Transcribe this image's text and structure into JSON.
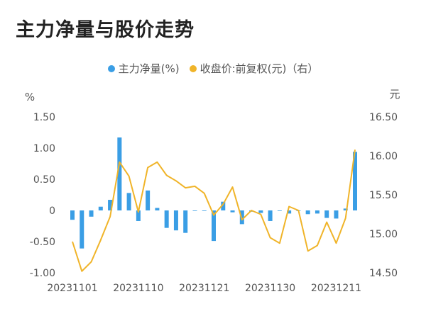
{
  "title": "主力净量与股价走势",
  "colors": {
    "bar": "#3a9ee5",
    "line": "#f0b429",
    "text": "#555555"
  },
  "chart_data": {
    "type": "bar+line",
    "legend": [
      {
        "label": "主力净量(%)",
        "color": "#3a9ee5",
        "type": "bar"
      },
      {
        "label": "收盘价:前复权(元)（右）",
        "color": "#f0b429",
        "type": "line"
      }
    ],
    "left_axis": {
      "unit": "%",
      "min": -1.0,
      "max": 1.5,
      "ticks": [
        1.5,
        1.0,
        0.5,
        0,
        -0.5,
        -1.0
      ],
      "tick_labels": [
        "1.50",
        "1.00",
        "0.50",
        "0",
        "-0.50",
        "-1.00"
      ]
    },
    "right_axis": {
      "unit": "元",
      "min": 14.5,
      "max": 16.5,
      "ticks": [
        16.5,
        16.0,
        15.5,
        15.0,
        14.5
      ],
      "tick_labels": [
        "16.50",
        "16.00",
        "15.50",
        "15.00",
        "14.50"
      ]
    },
    "x_tick_labels": [
      "20231101",
      "20231110",
      "20231121",
      "20231130",
      "20231211"
    ],
    "x_tick_index": [
      0,
      7,
      14,
      21,
      28
    ],
    "bars": [
      -0.15,
      -0.61,
      -0.1,
      0.06,
      0.17,
      1.17,
      0.28,
      -0.17,
      0.32,
      0.04,
      -0.28,
      -0.32,
      -0.36,
      0.0,
      0.0,
      -0.49,
      0.14,
      -0.03,
      -0.22,
      -0.02,
      -0.04,
      -0.17,
      0.0,
      -0.05,
      0.0,
      -0.06,
      -0.05,
      -0.12,
      -0.13,
      0.03,
      0.94
    ],
    "close": [
      14.9,
      14.52,
      14.64,
      14.92,
      15.22,
      15.92,
      15.74,
      15.28,
      15.85,
      15.92,
      15.75,
      15.68,
      15.59,
      15.61,
      15.52,
      15.24,
      15.38,
      15.6,
      15.18,
      15.3,
      15.25,
      14.95,
      14.88,
      15.35,
      15.3,
      14.78,
      14.85,
      15.15,
      14.88,
      15.2,
      16.08
    ]
  }
}
